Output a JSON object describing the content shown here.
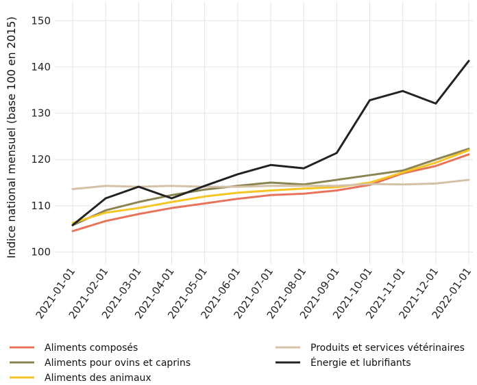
{
  "chart_data": {
    "type": "line",
    "title": "",
    "xlabel": "",
    "ylabel": "Indice national mensuel (base 100 en 2015)",
    "ylim": [
      98,
      153
    ],
    "yticks": [
      100,
      110,
      120,
      130,
      140,
      150
    ],
    "grid": true,
    "legend_position": "bottom",
    "categories": [
      "2021-01-01",
      "2021-02-01",
      "2021-03-01",
      "2021-04-01",
      "2021-05-01",
      "2021-06-01",
      "2021-07-01",
      "2021-08-01",
      "2021-09-01",
      "2021-10-01",
      "2021-11-01",
      "2021-12-01",
      "2022-01-01"
    ],
    "series": [
      {
        "name": "Aliments composés",
        "color": "#e8735a",
        "values": [
          104.5,
          106.7,
          108.2,
          109.5,
          110.5,
          111.5,
          112.3,
          112.6,
          113.3,
          114.5,
          117.0,
          118.6,
          121.1
        ]
      },
      {
        "name": "Aliments pour ovins et caprins",
        "color": "#8b8350",
        "values": [
          105.8,
          109.0,
          110.8,
          112.3,
          113.5,
          114.3,
          115.0,
          114.6,
          115.6,
          116.6,
          117.6,
          120.0,
          122.3
        ]
      },
      {
        "name": "Aliments des animaux",
        "color": "#f5c523",
        "values": [
          106.3,
          108.5,
          109.5,
          110.8,
          112.0,
          112.8,
          113.3,
          113.7,
          114.0,
          115.0,
          117.2,
          119.3,
          122.0
        ]
      },
      {
        "name": "Produits et services vétérinaires",
        "color": "#d4c2a8",
        "values": [
          113.6,
          114.3,
          114.1,
          114.3,
          114.1,
          114.1,
          114.3,
          114.3,
          114.3,
          114.7,
          114.6,
          114.8,
          115.6
        ]
      },
      {
        "name": "Énergie et lubrifiants",
        "color": "#222222",
        "values": [
          105.8,
          111.6,
          114.1,
          111.6,
          114.3,
          116.8,
          118.8,
          118.1,
          121.4,
          132.8,
          134.8,
          132.1,
          141.3
        ]
      }
    ]
  }
}
